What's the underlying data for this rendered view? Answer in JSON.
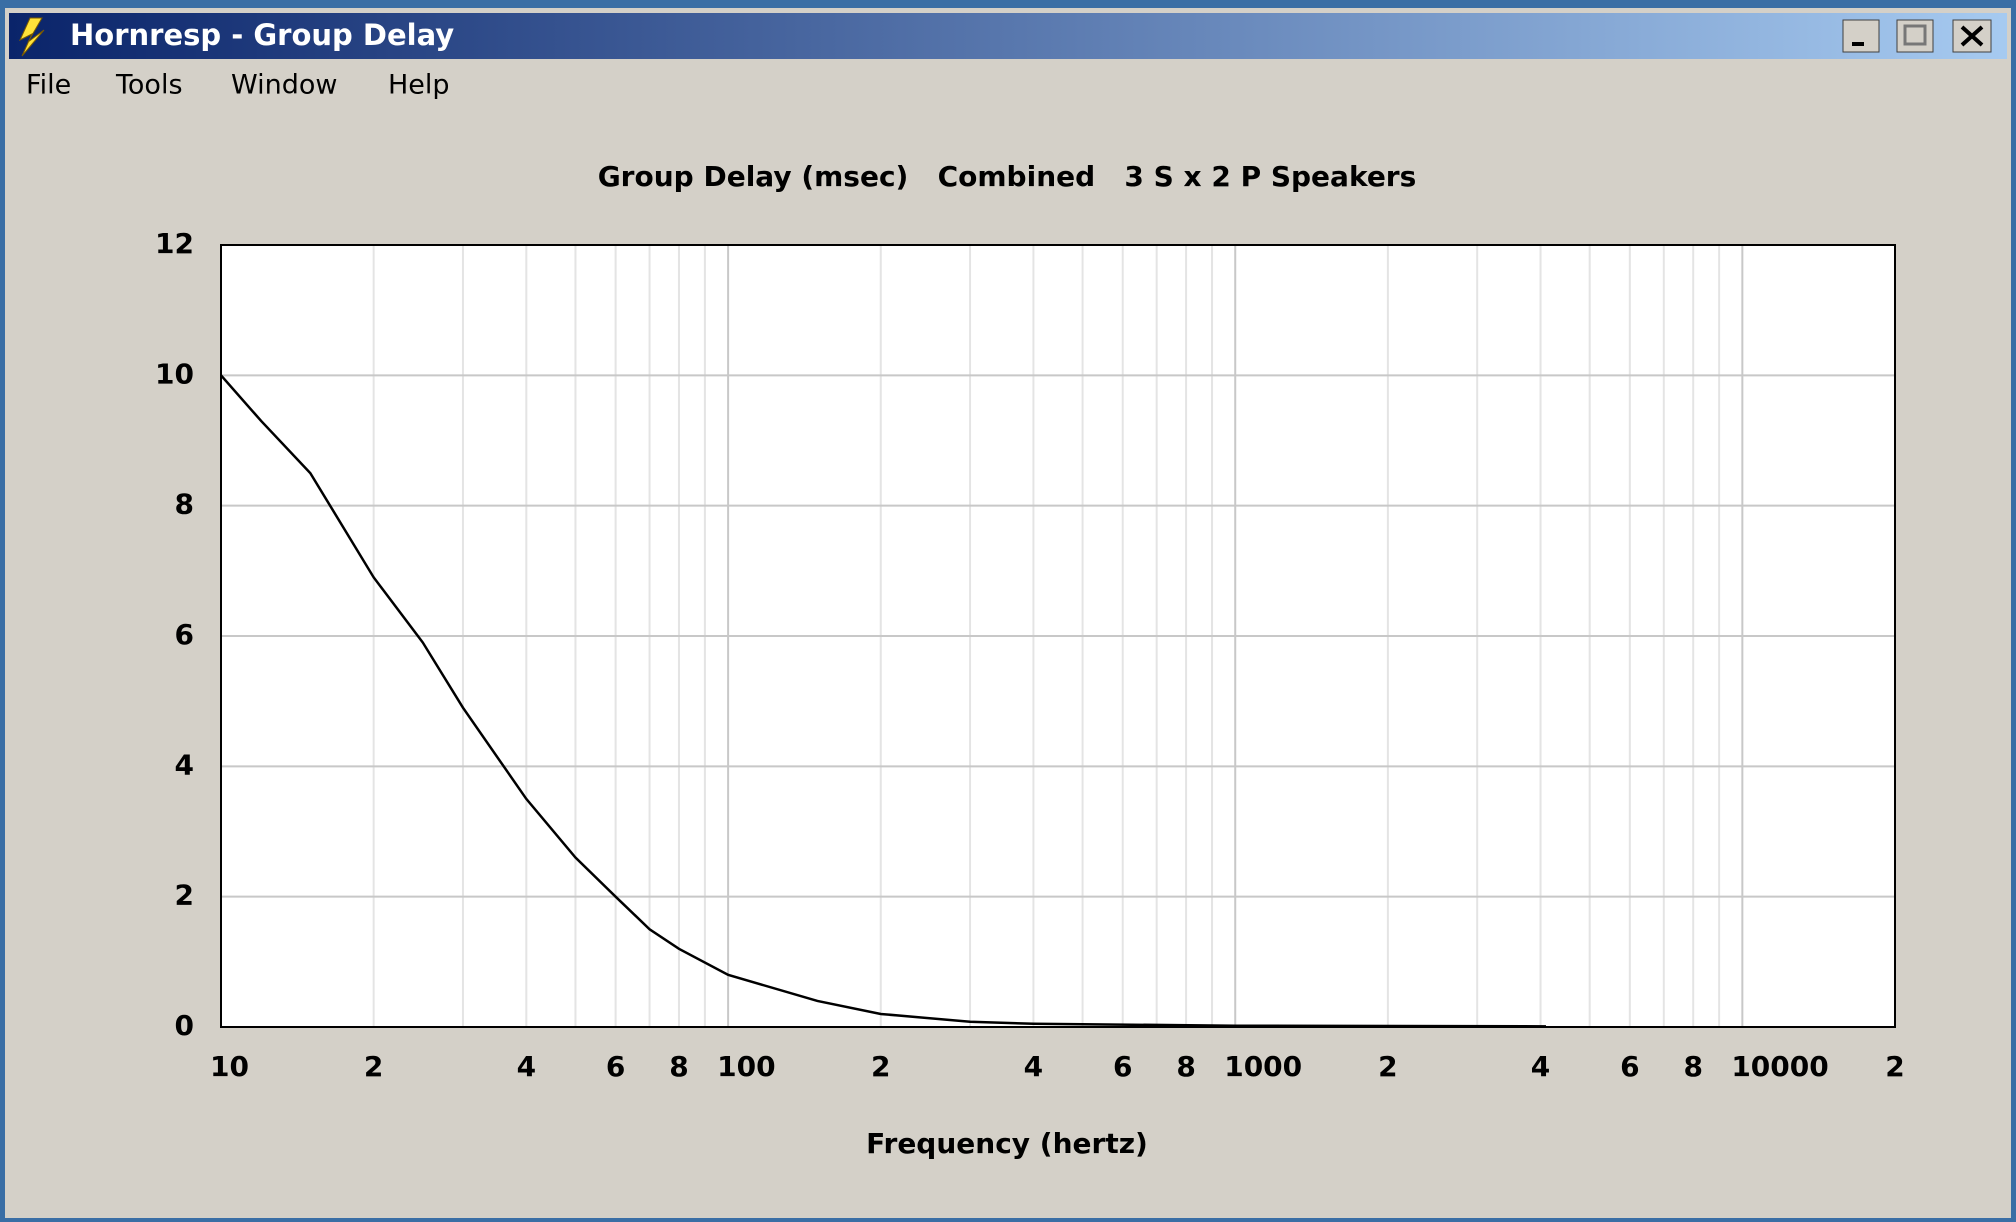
{
  "window": {
    "title": "Hornresp - Group Delay"
  },
  "menu": [
    "File",
    "Tools",
    "Window",
    "Help"
  ],
  "chart_data": {
    "type": "line",
    "title": "Group Delay (msec)   Combined   3 S x 2 P Speakers",
    "x_label": "Frequency (hertz)",
    "x": [
      10,
      12,
      15,
      20,
      25,
      30,
      40,
      50,
      60,
      70,
      80,
      100,
      150,
      200,
      300,
      400,
      1000,
      4100
    ],
    "values": [
      10.0,
      9.3,
      8.5,
      6.9,
      5.9,
      4.9,
      3.5,
      2.6,
      2.0,
      1.5,
      1.2,
      0.8,
      0.4,
      0.2,
      0.08,
      0.05,
      0.02,
      0.01
    ],
    "color": "#000000",
    "log_x": true,
    "grid": true,
    "xlim": [
      10,
      20000
    ],
    "ylim": [
      0,
      12
    ],
    "xticks": [
      10,
      {
        "value": 20,
        "label": "2"
      },
      {
        "value": 40,
        "label": "4"
      },
      {
        "value": 60,
        "label": "6"
      },
      {
        "value": 80,
        "label": "8"
      },
      100,
      {
        "value": 200,
        "label": "2"
      },
      {
        "value": 400,
        "label": "4"
      },
      {
        "value": 600,
        "label": "6"
      },
      {
        "value": 800,
        "label": "8"
      },
      1000,
      {
        "value": 2000,
        "label": "2"
      },
      {
        "value": 4000,
        "label": "4"
      },
      {
        "value": 6000,
        "label": "6"
      },
      {
        "value": 8000,
        "label": "8"
      },
      10000,
      {
        "value": 20000,
        "label": "2"
      }
    ],
    "xminor_ticks": [
      30,
      50,
      70,
      90,
      300,
      500,
      700,
      900,
      3000,
      5000,
      7000,
      9000
    ],
    "yticks": [
      0,
      2,
      4,
      6,
      8,
      10,
      12
    ]
  }
}
